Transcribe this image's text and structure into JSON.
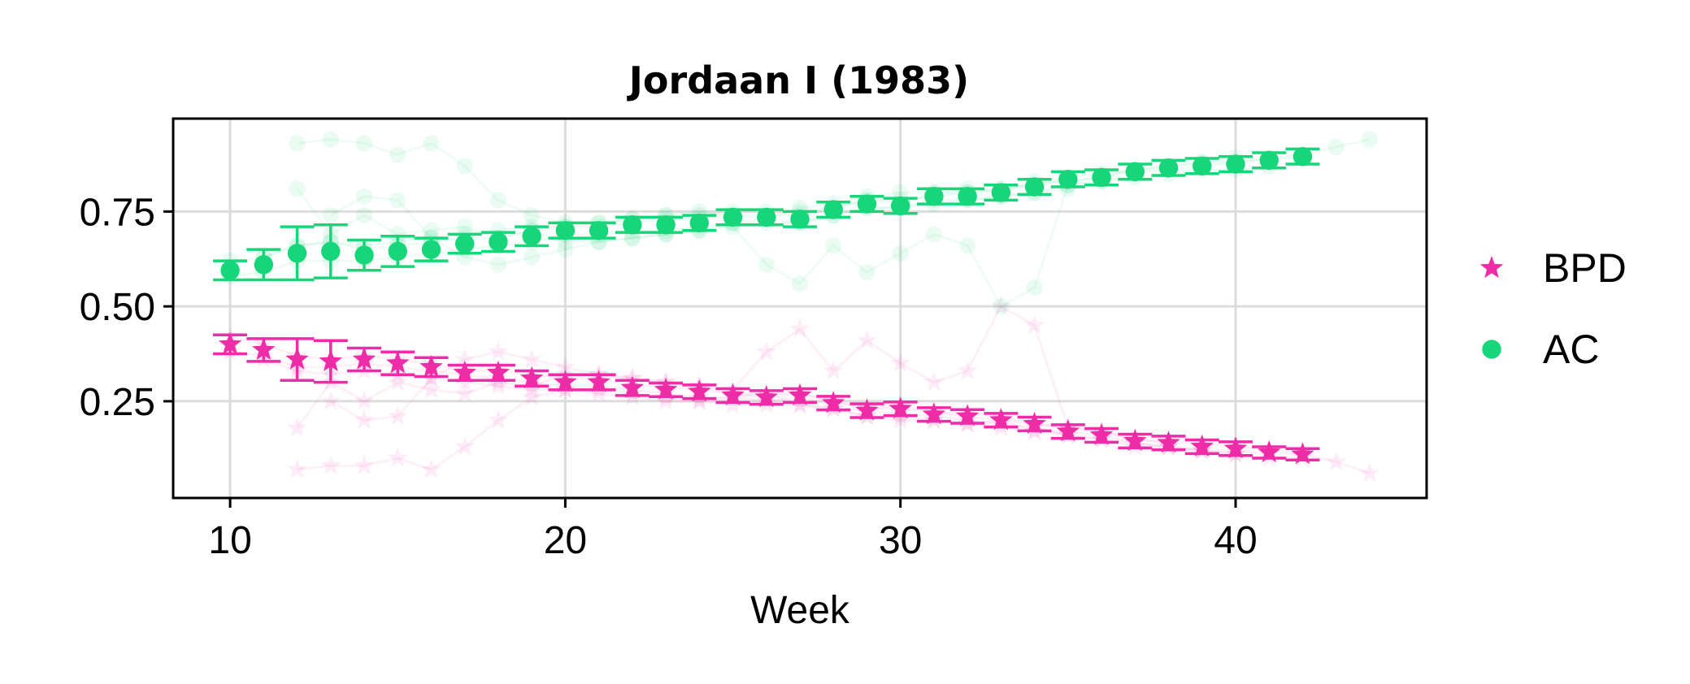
{
  "chart_data": {
    "type": "scatter",
    "title": "Jordaan I (1983)",
    "xlabel": "Week",
    "ylabel": "",
    "xlim": [
      8.3,
      45.7
    ],
    "ylim": [
      -0.005,
      0.995
    ],
    "xticks": [
      10,
      20,
      30,
      40
    ],
    "yticks": [
      0.25,
      0.5,
      0.75
    ],
    "xtick_labels": [
      "10",
      "20",
      "30",
      "40"
    ],
    "ytick_labels": [
      "0.25",
      "0.50",
      "0.75"
    ],
    "grid": true,
    "legend_position": "right",
    "series": [
      {
        "name": "BPD",
        "marker": "star",
        "color": "#ee2ca7",
        "x": [
          10,
          11,
          12,
          13,
          14,
          15,
          16,
          17,
          18,
          19,
          20,
          21,
          22,
          23,
          24,
          25,
          26,
          27,
          28,
          29,
          30,
          31,
          32,
          33,
          34,
          35,
          36,
          37,
          38,
          39,
          40,
          41,
          42
        ],
        "y": [
          0.4,
          0.385,
          0.36,
          0.355,
          0.36,
          0.35,
          0.34,
          0.325,
          0.325,
          0.31,
          0.3,
          0.3,
          0.285,
          0.28,
          0.275,
          0.265,
          0.26,
          0.265,
          0.245,
          0.225,
          0.23,
          0.215,
          0.21,
          0.2,
          0.19,
          0.17,
          0.16,
          0.145,
          0.14,
          0.13,
          0.125,
          0.115,
          0.11
        ],
        "err": [
          0.025,
          0.03,
          0.055,
          0.055,
          0.03,
          0.03,
          0.025,
          0.02,
          0.02,
          0.02,
          0.02,
          0.02,
          0.02,
          0.018,
          0.018,
          0.018,
          0.018,
          0.018,
          0.018,
          0.018,
          0.018,
          0.018,
          0.018,
          0.018,
          0.018,
          0.018,
          0.018,
          0.018,
          0.018,
          0.018,
          0.018,
          0.015,
          0.015
        ]
      },
      {
        "name": "AC",
        "marker": "circle",
        "color": "#17d67a",
        "x": [
          10,
          11,
          12,
          13,
          14,
          15,
          16,
          17,
          18,
          19,
          20,
          21,
          22,
          23,
          24,
          25,
          26,
          27,
          28,
          29,
          30,
          31,
          32,
          33,
          34,
          35,
          36,
          37,
          38,
          39,
          40,
          41,
          42
        ],
        "y": [
          0.595,
          0.61,
          0.64,
          0.645,
          0.635,
          0.645,
          0.65,
          0.665,
          0.67,
          0.685,
          0.7,
          0.7,
          0.715,
          0.715,
          0.72,
          0.735,
          0.735,
          0.73,
          0.755,
          0.77,
          0.765,
          0.79,
          0.79,
          0.8,
          0.815,
          0.835,
          0.84,
          0.855,
          0.865,
          0.87,
          0.875,
          0.885,
          0.895
        ],
        "err": [
          0.025,
          0.04,
          0.07,
          0.07,
          0.04,
          0.04,
          0.03,
          0.025,
          0.025,
          0.025,
          0.02,
          0.02,
          0.02,
          0.02,
          0.02,
          0.02,
          0.02,
          0.02,
          0.02,
          0.02,
          0.02,
          0.02,
          0.02,
          0.02,
          0.02,
          0.02,
          0.02,
          0.02,
          0.02,
          0.02,
          0.02,
          0.02,
          0.02
        ]
      }
    ],
    "background_traces": {
      "BPD": [
        {
          "x": [
            10,
            11,
            12,
            13,
            14,
            15,
            16,
            17,
            18,
            19,
            20,
            21,
            22,
            23,
            24,
            25,
            26,
            27,
            28,
            29,
            30,
            31,
            32,
            33,
            34,
            35,
            36,
            37,
            38,
            39,
            40,
            41,
            42,
            43,
            44
          ],
          "y": [
            0.42,
            0.4,
            0.37,
            0.36,
            0.37,
            0.36,
            0.35,
            0.33,
            0.33,
            0.32,
            0.31,
            0.31,
            0.29,
            0.29,
            0.28,
            0.27,
            0.27,
            0.27,
            0.25,
            0.23,
            0.24,
            0.22,
            0.22,
            0.21,
            0.19,
            0.18,
            0.17,
            0.15,
            0.14,
            0.14,
            0.13,
            0.12,
            0.11,
            0.09,
            0.06
          ]
        },
        {
          "x": [
            10,
            11,
            12,
            13,
            14,
            15,
            16,
            17,
            18,
            19,
            20,
            21,
            22,
            23,
            24,
            25,
            26,
            27,
            28,
            29,
            30,
            31,
            32,
            33,
            34,
            35,
            36,
            37,
            38,
            39,
            40,
            41
          ],
          "y": [
            0.38,
            0.37,
            0.34,
            0.34,
            0.35,
            0.34,
            0.33,
            0.32,
            0.31,
            0.3,
            0.29,
            0.29,
            0.28,
            0.27,
            0.26,
            0.26,
            0.25,
            0.26,
            0.24,
            0.22,
            0.22,
            0.21,
            0.2,
            0.19,
            0.18,
            0.16,
            0.15,
            0.14,
            0.13,
            0.12,
            0.12,
            0.11
          ]
        },
        {
          "x": [
            12,
            13,
            14,
            15,
            16,
            17,
            18,
            19,
            20,
            21,
            22,
            23,
            24,
            25,
            26,
            27,
            28,
            29,
            30,
            31,
            32,
            33,
            34,
            35,
            36,
            37,
            38,
            39,
            40
          ],
          "y": [
            0.07,
            0.08,
            0.08,
            0.1,
            0.07,
            0.13,
            0.2,
            0.26,
            0.28,
            0.28,
            0.27,
            0.26,
            0.25,
            0.26,
            0.27,
            0.24,
            0.23,
            0.21,
            0.2,
            0.2,
            0.19,
            0.2,
            0.17,
            0.17,
            0.16,
            0.14,
            0.13,
            0.12,
            0.11
          ]
        },
        {
          "x": [
            12,
            13,
            14,
            15,
            16,
            17,
            18,
            19,
            20,
            21,
            22,
            23,
            24,
            25,
            26,
            27,
            28,
            29,
            30,
            31,
            32,
            33,
            34,
            35,
            36,
            37,
            38
          ],
          "y": [
            0.18,
            0.3,
            0.25,
            0.3,
            0.28,
            0.27,
            0.3,
            0.29,
            0.32,
            0.32,
            0.31,
            0.3,
            0.29,
            0.28,
            0.38,
            0.44,
            0.33,
            0.41,
            0.35,
            0.3,
            0.33,
            0.5,
            0.45,
            0.18,
            0.17,
            0.15,
            0.14
          ]
        },
        {
          "x": [
            11,
            12,
            13,
            14,
            15,
            16,
            17,
            18,
            19,
            20,
            21,
            22,
            23,
            24,
            25,
            26,
            27,
            28,
            29,
            30,
            31,
            32,
            33,
            34,
            35,
            36,
            37,
            38,
            39,
            40,
            41,
            42
          ],
          "y": [
            0.36,
            0.33,
            0.32,
            0.33,
            0.32,
            0.31,
            0.3,
            0.29,
            0.28,
            0.28,
            0.27,
            0.26,
            0.25,
            0.25,
            0.24,
            0.24,
            0.24,
            0.23,
            0.21,
            0.21,
            0.2,
            0.19,
            0.18,
            0.17,
            0.16,
            0.15,
            0.13,
            0.13,
            0.12,
            0.11,
            0.1,
            0.1
          ]
        },
        {
          "x": [
            13,
            14,
            15,
            16,
            17,
            18,
            19,
            20,
            21,
            22,
            23,
            24,
            25,
            26,
            27,
            28,
            29,
            30,
            31,
            32,
            33,
            34,
            35
          ],
          "y": [
            0.25,
            0.2,
            0.21,
            0.31,
            0.36,
            0.38,
            0.36,
            0.34,
            0.32,
            0.31,
            0.3,
            0.29,
            0.27,
            0.26,
            0.27,
            0.25,
            0.23,
            0.23,
            0.22,
            0.21,
            0.2,
            0.19,
            0.18
          ]
        }
      ],
      "AC": [
        {
          "x": [
            10,
            11,
            12,
            13,
            14,
            15,
            16,
            17,
            18,
            19,
            20,
            21,
            22,
            23,
            24,
            25,
            26,
            27,
            28,
            29,
            30,
            31,
            32,
            33,
            34,
            35,
            36,
            37,
            38,
            39,
            40,
            41,
            42,
            43,
            44
          ],
          "y": [
            0.62,
            0.63,
            0.66,
            0.67,
            0.65,
            0.66,
            0.67,
            0.68,
            0.68,
            0.7,
            0.71,
            0.71,
            0.72,
            0.73,
            0.73,
            0.74,
            0.74,
            0.74,
            0.76,
            0.78,
            0.77,
            0.8,
            0.8,
            0.81,
            0.82,
            0.84,
            0.85,
            0.86,
            0.87,
            0.88,
            0.88,
            0.89,
            0.9,
            0.92,
            0.94
          ]
        },
        {
          "x": [
            10,
            11,
            12,
            13,
            14,
            15,
            16,
            17,
            18,
            19,
            20,
            21,
            22,
            23,
            24,
            25,
            26,
            27,
            28,
            29,
            30,
            31,
            32,
            33,
            34,
            35,
            36,
            37,
            38,
            39,
            40,
            41
          ],
          "y": [
            0.58,
            0.59,
            0.62,
            0.62,
            0.62,
            0.63,
            0.64,
            0.65,
            0.66,
            0.67,
            0.69,
            0.69,
            0.7,
            0.7,
            0.71,
            0.72,
            0.72,
            0.72,
            0.74,
            0.76,
            0.76,
            0.78,
            0.78,
            0.79,
            0.8,
            0.82,
            0.83,
            0.84,
            0.85,
            0.86,
            0.86,
            0.87
          ]
        },
        {
          "x": [
            12,
            13,
            14,
            15,
            16,
            17,
            18,
            19,
            20,
            21,
            22,
            23,
            24,
            25,
            26,
            27,
            28,
            29,
            30,
            31,
            32,
            33,
            34,
            35,
            36,
            37,
            38,
            39,
            40
          ],
          "y": [
            0.93,
            0.94,
            0.93,
            0.9,
            0.93,
            0.87,
            0.78,
            0.74,
            0.72,
            0.72,
            0.73,
            0.74,
            0.75,
            0.74,
            0.73,
            0.76,
            0.77,
            0.79,
            0.8,
            0.8,
            0.81,
            0.8,
            0.83,
            0.83,
            0.84,
            0.86,
            0.87,
            0.88,
            0.89
          ]
        },
        {
          "x": [
            12,
            13,
            14,
            15,
            16,
            17,
            18,
            19,
            20,
            21,
            22,
            23,
            24,
            25,
            26,
            27,
            28,
            29,
            30,
            31,
            32,
            33,
            34,
            35,
            36,
            37,
            38
          ],
          "y": [
            0.81,
            0.69,
            0.74,
            0.69,
            0.7,
            0.71,
            0.68,
            0.7,
            0.67,
            0.67,
            0.68,
            0.69,
            0.7,
            0.71,
            0.61,
            0.56,
            0.66,
            0.59,
            0.64,
            0.69,
            0.66,
            0.5,
            0.55,
            0.82,
            0.83,
            0.85,
            0.86
          ]
        },
        {
          "x": [
            11,
            12,
            13,
            14,
            15,
            16,
            17,
            18,
            19,
            20,
            21,
            22,
            23,
            24,
            25,
            26,
            27,
            28,
            29,
            30,
            31,
            32,
            33,
            34,
            35,
            36,
            37,
            38,
            39,
            40,
            41,
            42
          ],
          "y": [
            0.63,
            0.66,
            0.67,
            0.66,
            0.67,
            0.68,
            0.69,
            0.7,
            0.71,
            0.71,
            0.72,
            0.73,
            0.74,
            0.74,
            0.75,
            0.75,
            0.75,
            0.76,
            0.78,
            0.78,
            0.79,
            0.8,
            0.81,
            0.82,
            0.83,
            0.84,
            0.86,
            0.86,
            0.87,
            0.88,
            0.89,
            0.89
          ]
        },
        {
          "x": [
            13,
            14,
            15,
            16,
            17,
            18,
            19,
            20,
            21,
            22,
            23,
            24,
            25,
            26,
            27,
            28,
            29,
            30,
            31,
            32,
            33,
            34,
            35
          ],
          "y": [
            0.74,
            0.79,
            0.78,
            0.68,
            0.63,
            0.61,
            0.63,
            0.65,
            0.67,
            0.68,
            0.69,
            0.7,
            0.72,
            0.73,
            0.72,
            0.74,
            0.76,
            0.76,
            0.77,
            0.78,
            0.79,
            0.8,
            0.81
          ]
        }
      ]
    }
  }
}
